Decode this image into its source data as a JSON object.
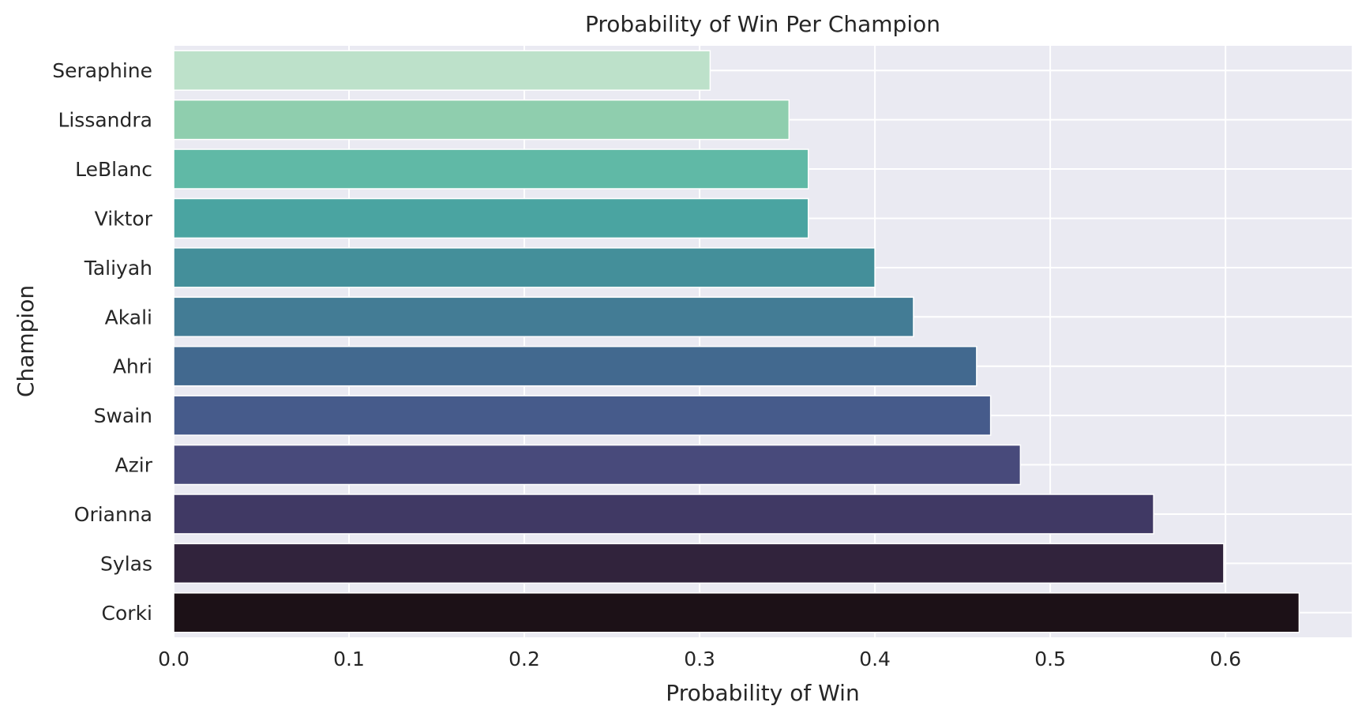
{
  "chart_data": {
    "type": "bar",
    "orientation": "horizontal",
    "title": "Probability of Win Per Champion",
    "xlabel": "Probability of Win",
    "ylabel": "Champion",
    "categories": [
      "Seraphine",
      "Lissandra",
      "LeBlanc",
      "Viktor",
      "Taliyah",
      "Akali",
      "Ahri",
      "Swain",
      "Azir",
      "Orianna",
      "Sylas",
      "Corki"
    ],
    "values": [
      0.306,
      0.351,
      0.362,
      0.362,
      0.4,
      0.422,
      0.458,
      0.466,
      0.483,
      0.559,
      0.599,
      0.642
    ],
    "colors": [
      "#bde1ca",
      "#8fceae",
      "#60b9a6",
      "#4aa4a1",
      "#448f9a",
      "#437c95",
      "#42698f",
      "#465b8b",
      "#484a7b",
      "#403964",
      "#31233c",
      "#1c1117"
    ],
    "xlim": [
      0,
      0.672
    ],
    "xticks": [
      0.0,
      0.1,
      0.2,
      0.3,
      0.4,
      0.5,
      0.6
    ],
    "xtick_labels": [
      "0.0",
      "0.1",
      "0.2",
      "0.3",
      "0.4",
      "0.5",
      "0.6"
    ],
    "grid": true,
    "colors_theme": {
      "plot_background": "#eaeaf2",
      "grid": "#ffffff",
      "text": "#262626"
    }
  }
}
